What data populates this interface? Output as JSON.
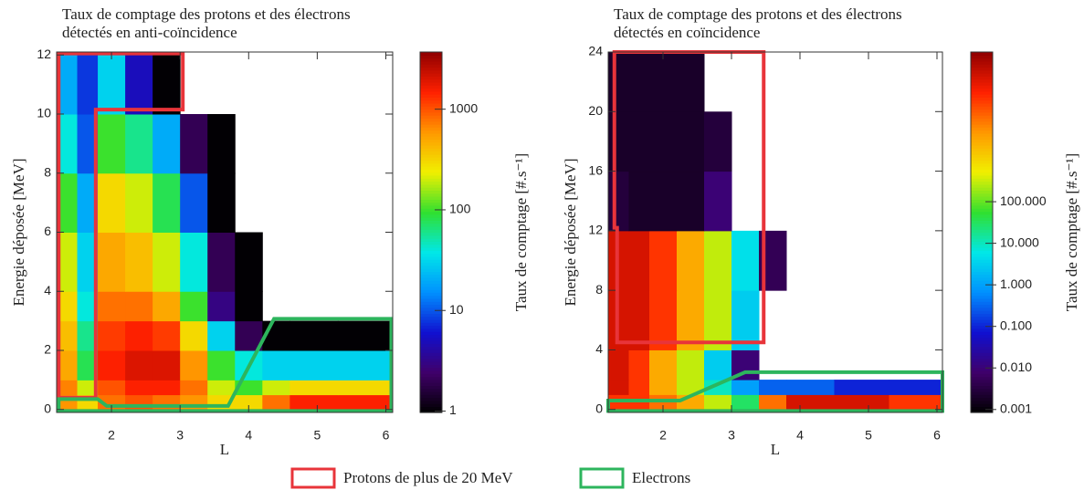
{
  "legend": [
    {
      "name": "Protons de plus de 20 MeV",
      "color": "#e8343a"
    },
    {
      "name": "Electrons",
      "color": "#2db55d"
    }
  ],
  "chart_data": [
    {
      "type": "heatmap",
      "title": [
        "Taux de comptage des protons et des électrons",
        "détectés en anti-coïncidence"
      ],
      "x_label": "L",
      "y_label": "Energie déposée [MeV]",
      "colorbar_label": "Taux de comptage [#.s⁻¹]",
      "xlim": [
        1.2,
        6.1
      ],
      "ylim": [
        -0.1,
        12.1
      ],
      "xticks": [
        2,
        3,
        4,
        5,
        6
      ],
      "yticks": [
        0,
        2,
        4,
        6,
        8,
        10,
        12
      ],
      "zlim": [
        0.97,
        3700
      ],
      "zscale": "log",
      "zticks": [
        1,
        10,
        100,
        1000
      ],
      "colormap": [
        "#000000",
        "#40006a",
        "#1010d0",
        "#0090ff",
        "#00e8e8",
        "#30e030",
        "#f0f000",
        "#ff9800",
        "#ff2000",
        "#900000"
      ],
      "x_edges": [
        1.2,
        1.5,
        1.8,
        2.2,
        2.6,
        3.0,
        3.4,
        3.8,
        4.2,
        4.6,
        5.3,
        6.1
      ],
      "y_edges": [
        0,
        0.5,
        1,
        2,
        3,
        4,
        6,
        8,
        10,
        12
      ],
      "z": [
        [
          600,
          300,
          800,
          1000,
          800,
          600,
          300,
          300,
          800,
          1500,
          1500
        ],
        [
          700,
          200,
          1000,
          1500,
          1500,
          800,
          200,
          100,
          200,
          300,
          300
        ],
        [
          500,
          80,
          1500,
          2000,
          2000,
          600,
          100,
          40,
          30,
          30,
          30
        ],
        [
          400,
          60,
          1200,
          1500,
          1200,
          300,
          30,
          2,
          1,
          1,
          1
        ],
        [
          300,
          40,
          800,
          800,
          500,
          100,
          3,
          1,
          null,
          null,
          null
        ],
        [
          200,
          30,
          500,
          400,
          200,
          40,
          2,
          1,
          null,
          null,
          null
        ],
        [
          100,
          20,
          300,
          200,
          80,
          10,
          1,
          null,
          null,
          null,
          null
        ],
        [
          40,
          10,
          100,
          60,
          20,
          2,
          1,
          null,
          null,
          null,
          null
        ],
        [
          20,
          8,
          30,
          5,
          1,
          null,
          null,
          null,
          null,
          null,
          null
        ]
      ],
      "regions": [
        {
          "color": "#e8343a",
          "x": [
            1.23,
            1.23,
            3.04,
            3.04,
            1.77,
            1.77
          ],
          "y": [
            0.4,
            12.05,
            12.05,
            10.15,
            10.15,
            0.4
          ]
        },
        {
          "color": "#2db55d",
          "x": [
            1.23,
            1.8,
            1.93,
            3.7,
            4.37,
            6.08,
            6.08,
            1.23
          ],
          "y": [
            0.35,
            0.35,
            0.12,
            0.12,
            3.07,
            3.07,
            -0.05,
            -0.05
          ]
        }
      ]
    },
    {
      "type": "heatmap",
      "title": [
        "Taux de comptage des protons et des électrons",
        "détectés en coïncidence"
      ],
      "x_label": "L",
      "y_label": "Energie déposée [MeV]",
      "colorbar_label": "Taux de comptage [#.s⁻¹]",
      "xlim": [
        1.2,
        6.08
      ],
      "ylim": [
        -0.2,
        24
      ],
      "xticks": [
        2,
        3,
        4,
        5,
        6
      ],
      "yticks": [
        0,
        4,
        8,
        12,
        16,
        20,
        24
      ],
      "zlim": [
        0.00085,
        400000
      ],
      "zscale": "log",
      "zticks": [
        {
          "value": 0.001,
          "label": "0.001"
        },
        {
          "value": 0.01,
          "label": "0.010"
        },
        {
          "value": 0.1,
          "label": "0.100"
        },
        {
          "value": 1,
          "label": "1.000"
        },
        {
          "value": 10,
          "label": "10.000"
        },
        {
          "value": 100,
          "label": "100.000"
        }
      ],
      "colormap": [
        "#000000",
        "#40006a",
        "#1010d0",
        "#0090ff",
        "#00e8e8",
        "#30e030",
        "#f0f000",
        "#ff9800",
        "#ff2000",
        "#900000"
      ],
      "x_edges": [
        1.2,
        1.5,
        1.8,
        2.2,
        2.6,
        3.0,
        3.4,
        3.8,
        4.5,
        5.3,
        6.08
      ],
      "y_edges": [
        0,
        1,
        2,
        4,
        8,
        12,
        16,
        20,
        24
      ],
      "z": [
        [
          30000,
          30000,
          10000,
          3000,
          300,
          30,
          10000,
          100000,
          100000,
          30000
        ],
        [
          100000,
          30000,
          3000,
          300,
          10,
          1,
          0.3,
          0.3,
          0.1,
          0.1
        ],
        [
          100000,
          30000,
          3000,
          300,
          3,
          0.01,
          null,
          null,
          null,
          null
        ],
        [
          100000,
          100000,
          30000,
          3000,
          300,
          3,
          null,
          null,
          null,
          null
        ],
        [
          100000,
          100000,
          30000,
          3000,
          300,
          5,
          0.005,
          null,
          null,
          null
        ],
        [
          0.003,
          0.002,
          0.002,
          0.002,
          0.01,
          null,
          null,
          null,
          null,
          null
        ],
        [
          0.002,
          0.002,
          0.002,
          0.002,
          0.003,
          null,
          null,
          null,
          null,
          null
        ],
        [
          0.002,
          0.002,
          0.002,
          0.002,
          null,
          null,
          null,
          null,
          null,
          null
        ]
      ],
      "regions": [
        {
          "color": "#e8343a",
          "x": [
            1.33,
            1.33,
            1.29,
            1.29,
            3.47,
            3.47
          ],
          "y": [
            4.5,
            12.2,
            12.2,
            24,
            24,
            4.5
          ]
        },
        {
          "color": "#2db55d",
          "x": [
            1.2,
            2.25,
            3.2,
            6.08,
            6.08,
            1.2
          ],
          "y": [
            0.6,
            0.6,
            2.5,
            2.5,
            -0.1,
            -0.1
          ]
        }
      ]
    }
  ]
}
